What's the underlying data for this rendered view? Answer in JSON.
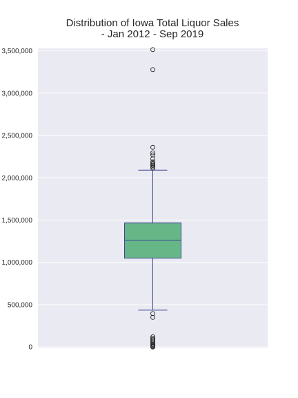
{
  "chart_data": {
    "type": "box",
    "title": [
      "Distribution of Iowa Total Liquor Sales",
      "- Jan 2012 - Sep 2019"
    ],
    "xlabel": "",
    "ylabel": "",
    "ylim": [
      -15000,
      3530000
    ],
    "yticks": [
      0,
      500000,
      1000000,
      1500000,
      2000000,
      2500000,
      3000000,
      3500000
    ],
    "ytick_labels": [
      "0",
      "500,000",
      "1,000,000",
      "1,500,000",
      "2,000,000",
      "2,500,000",
      "3,000,000",
      "3,500,000"
    ],
    "grid": true,
    "box": {
      "q1": 1050000,
      "median": 1262000,
      "q3": 1466000,
      "whisker_low": 435000,
      "whisker_high": 2090000
    },
    "outliers": [
      3515000,
      3278000,
      2360000,
      2295000,
      2270000,
      2225000,
      2190000,
      2170000,
      2160000,
      2145000,
      2130000,
      2115000,
      395000,
      350000,
      120000,
      105000,
      90000,
      75000,
      60000,
      45000,
      30000,
      20000,
      10000,
      3000,
      0
    ],
    "colors": {
      "background": "#eaeaf2",
      "grid": "#ffffff",
      "box_fill": "#66b687",
      "box_edge": "#3b4591",
      "outlier_edge": "#262626"
    }
  }
}
